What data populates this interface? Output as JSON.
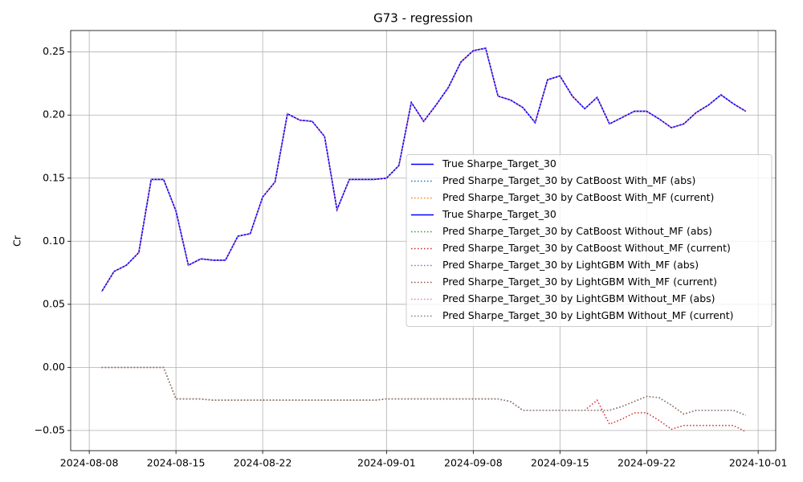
{
  "chart_data": {
    "type": "line",
    "title": "G73 - regression",
    "y_label": "Cr",
    "x": [
      "2024-08-09",
      "2024-08-10",
      "2024-08-11",
      "2024-08-12",
      "2024-08-13",
      "2024-08-14",
      "2024-08-15",
      "2024-08-16",
      "2024-08-17",
      "2024-08-18",
      "2024-08-19",
      "2024-08-20",
      "2024-08-21",
      "2024-08-22",
      "2024-08-23",
      "2024-08-24",
      "2024-08-25",
      "2024-08-26",
      "2024-08-27",
      "2024-08-28",
      "2024-08-29",
      "2024-08-30",
      "2024-08-31",
      "2024-09-01",
      "2024-09-02",
      "2024-09-03",
      "2024-09-04",
      "2024-09-05",
      "2024-09-06",
      "2024-09-07",
      "2024-09-08",
      "2024-09-09",
      "2024-09-10",
      "2024-09-11",
      "2024-09-12",
      "2024-09-13",
      "2024-09-14",
      "2024-09-15",
      "2024-09-16",
      "2024-09-17",
      "2024-09-18",
      "2024-09-19",
      "2024-09-20",
      "2024-09-21",
      "2024-09-22",
      "2024-09-23",
      "2024-09-24",
      "2024-09-25",
      "2024-09-26",
      "2024-09-27",
      "2024-09-28",
      "2024-09-29",
      "2024-09-30"
    ],
    "xlim": [
      "2024-08-06T12:00:00Z",
      "2024-10-02T10:00:00Z"
    ],
    "xticks": [
      "2024-08-08",
      "2024-08-15",
      "2024-08-22",
      "2024-09-01",
      "2024-09-08",
      "2024-09-15",
      "2024-09-22",
      "2024-10-01"
    ],
    "ylim": [
      -0.066,
      0.267
    ],
    "yticks": [
      {
        "value": -0.05,
        "label": "−0.05"
      },
      {
        "value": 0,
        "label": "0.00"
      },
      {
        "value": 0.05,
        "label": "0.05"
      },
      {
        "value": 0.1,
        "label": "0.10"
      },
      {
        "value": 0.15,
        "label": "0.15"
      },
      {
        "value": 0.2,
        "label": "0.20"
      },
      {
        "value": 0.25,
        "label": "0.25"
      }
    ],
    "grid": true,
    "legend_position": "center right",
    "series": [
      {
        "name": "True Sharpe_Target_30",
        "color": "#0000ff",
        "style": "solid",
        "values": [
          0.06,
          0.076,
          0.081,
          0.091,
          0.149,
          0.149,
          0.124,
          0.081,
          0.086,
          0.085,
          0.085,
          0.104,
          0.106,
          0.135,
          0.147,
          0.201,
          0.196,
          0.195,
          0.183,
          0.125,
          0.149,
          0.149,
          0.149,
          0.15,
          0.16,
          0.21,
          0.195,
          0.208,
          0.222,
          0.242,
          0.251,
          0.253,
          0.215,
          0.212,
          0.206,
          0.194,
          0.228,
          0.231,
          0.215,
          0.205,
          0.214,
          0.193,
          0.198,
          0.203,
          0.203,
          0.197,
          0.19,
          0.193,
          0.202,
          0.208,
          0.216,
          0.209,
          0.203
        ]
      },
      {
        "name": "Pred Sharpe_Target_30 by CatBoost With_MF (abs)",
        "color": "#1f77b4",
        "style": "dotted",
        "values": [
          0.06,
          0.076,
          0.081,
          0.091,
          0.149,
          0.149,
          0.124,
          0.081,
          0.086,
          0.085,
          0.085,
          0.104,
          0.106,
          0.135,
          0.147,
          0.201,
          0.196,
          0.195,
          0.183,
          0.125,
          0.149,
          0.149,
          0.149,
          0.15,
          0.16,
          0.21,
          0.195,
          0.208,
          0.222,
          0.242,
          0.251,
          0.253,
          0.215,
          0.212,
          0.206,
          0.194,
          0.228,
          0.231,
          0.215,
          0.205,
          0.214,
          0.193,
          0.198,
          0.203,
          0.203,
          0.197,
          0.19,
          0.193,
          0.202,
          0.208,
          0.216,
          0.209,
          0.203
        ]
      },
      {
        "name": "Pred Sharpe_Target_30 by CatBoost With_MF (current)",
        "color": "#ff7f0e",
        "style": "dotted",
        "values": [
          0,
          0,
          0,
          0,
          0,
          0,
          -0.025,
          -0.025,
          -0.025,
          -0.026,
          -0.026,
          -0.026,
          -0.026,
          -0.026,
          -0.026,
          -0.026,
          -0.026,
          -0.026,
          -0.026,
          -0.026,
          -0.026,
          -0.026,
          -0.026,
          -0.025,
          -0.025,
          -0.025,
          -0.025,
          -0.025,
          -0.025,
          -0.025,
          -0.025,
          -0.025,
          -0.025,
          -0.027,
          -0.034,
          -0.034,
          -0.034,
          -0.034,
          -0.034,
          -0.034,
          -0.034,
          -0.034,
          -0.031,
          -0.027,
          -0.023,
          -0.024,
          -0.03,
          -0.037,
          -0.034,
          -0.034,
          -0.034,
          -0.034,
          -0.038
        ]
      },
      {
        "name": "True Sharpe_Target_30",
        "color": "#0000ff",
        "style": "solid",
        "values": [
          0.06,
          0.076,
          0.081,
          0.091,
          0.149,
          0.149,
          0.124,
          0.081,
          0.086,
          0.085,
          0.085,
          0.104,
          0.106,
          0.135,
          0.147,
          0.201,
          0.196,
          0.195,
          0.183,
          0.125,
          0.149,
          0.149,
          0.149,
          0.15,
          0.16,
          0.21,
          0.195,
          0.208,
          0.222,
          0.242,
          0.251,
          0.253,
          0.215,
          0.212,
          0.206,
          0.194,
          0.228,
          0.231,
          0.215,
          0.205,
          0.214,
          0.193,
          0.198,
          0.203,
          0.203,
          0.197,
          0.19,
          0.193,
          0.202,
          0.208,
          0.216,
          0.209,
          0.203
        ]
      },
      {
        "name": "Pred Sharpe_Target_30 by CatBoost Without_MF (abs)",
        "color": "#2ca02c",
        "style": "dotted",
        "values": [
          0.06,
          0.076,
          0.081,
          0.091,
          0.149,
          0.149,
          0.124,
          0.081,
          0.086,
          0.085,
          0.085,
          0.104,
          0.106,
          0.135,
          0.147,
          0.201,
          0.196,
          0.195,
          0.183,
          0.125,
          0.149,
          0.149,
          0.149,
          0.15,
          0.16,
          0.21,
          0.195,
          0.208,
          0.222,
          0.242,
          0.251,
          0.253,
          0.215,
          0.212,
          0.206,
          0.194,
          0.228,
          0.231,
          0.215,
          0.205,
          0.214,
          0.193,
          0.198,
          0.203,
          0.203,
          0.197,
          0.19,
          0.193,
          0.202,
          0.208,
          0.216,
          0.209,
          0.203
        ]
      },
      {
        "name": "Pred Sharpe_Target_30 by CatBoost Without_MF (current)",
        "color": "#d62728",
        "style": "dotted",
        "values": [
          0,
          0,
          0,
          0,
          0,
          0,
          -0.025,
          -0.025,
          -0.025,
          -0.026,
          -0.026,
          -0.026,
          -0.026,
          -0.026,
          -0.026,
          -0.026,
          -0.026,
          -0.026,
          -0.026,
          -0.026,
          -0.026,
          -0.026,
          -0.026,
          -0.025,
          -0.025,
          -0.025,
          -0.025,
          -0.025,
          -0.025,
          -0.025,
          -0.025,
          -0.025,
          -0.025,
          -0.027,
          -0.034,
          -0.034,
          -0.034,
          -0.034,
          -0.034,
          -0.034,
          -0.026,
          -0.045,
          -0.041,
          -0.036,
          -0.036,
          -0.042,
          -0.049,
          -0.046,
          -0.046,
          -0.046,
          -0.046,
          -0.046,
          -0.051
        ]
      },
      {
        "name": "Pred Sharpe_Target_30 by LightGBM With_MF (abs)",
        "color": "#9467bd",
        "style": "dotted",
        "values": [
          0.06,
          0.076,
          0.081,
          0.091,
          0.149,
          0.149,
          0.124,
          0.081,
          0.086,
          0.085,
          0.085,
          0.104,
          0.106,
          0.135,
          0.147,
          0.201,
          0.196,
          0.195,
          0.183,
          0.125,
          0.149,
          0.149,
          0.149,
          0.15,
          0.16,
          0.21,
          0.195,
          0.208,
          0.222,
          0.242,
          0.251,
          0.253,
          0.215,
          0.212,
          0.206,
          0.194,
          0.228,
          0.231,
          0.215,
          0.205,
          0.214,
          0.193,
          0.198,
          0.203,
          0.203,
          0.197,
          0.19,
          0.193,
          0.202,
          0.208,
          0.216,
          0.209,
          0.203
        ]
      },
      {
        "name": "Pred Sharpe_Target_30 by LightGBM With_MF (current)",
        "color": "#8c564b",
        "style": "dotted",
        "values": [
          0,
          0,
          0,
          0,
          0,
          0,
          -0.025,
          -0.025,
          -0.025,
          -0.026,
          -0.026,
          -0.026,
          -0.026,
          -0.026,
          -0.026,
          -0.026,
          -0.026,
          -0.026,
          -0.026,
          -0.026,
          -0.026,
          -0.026,
          -0.026,
          -0.025,
          -0.025,
          -0.025,
          -0.025,
          -0.025,
          -0.025,
          -0.025,
          -0.025,
          -0.025,
          -0.025,
          -0.027,
          -0.034,
          -0.034,
          -0.034,
          -0.034,
          -0.034,
          -0.034,
          -0.034,
          -0.034,
          -0.031,
          -0.027,
          -0.023,
          -0.024,
          -0.03,
          -0.037,
          -0.034,
          -0.034,
          -0.034,
          -0.034,
          -0.038
        ]
      },
      {
        "name": "Pred Sharpe_Target_30 by LightGBM Without_MF (abs)",
        "color": "#e377c2",
        "style": "dotted",
        "values": [
          0.06,
          0.076,
          0.081,
          0.091,
          0.149,
          0.149,
          0.124,
          0.081,
          0.086,
          0.085,
          0.085,
          0.104,
          0.106,
          0.135,
          0.147,
          0.201,
          0.196,
          0.195,
          0.183,
          0.125,
          0.149,
          0.149,
          0.149,
          0.15,
          0.16,
          0.21,
          0.195,
          0.208,
          0.222,
          0.242,
          0.251,
          0.253,
          0.215,
          0.212,
          0.206,
          0.194,
          0.228,
          0.231,
          0.215,
          0.205,
          0.214,
          0.193,
          0.198,
          0.203,
          0.203,
          0.197,
          0.19,
          0.193,
          0.202,
          0.208,
          0.216,
          0.209,
          0.203
        ]
      },
      {
        "name": "Pred Sharpe_Target_30 by LightGBM Without_MF (current)",
        "color": "#7f7f7f",
        "style": "dotted",
        "values": [
          0,
          0,
          0,
          0,
          0,
          0,
          -0.025,
          -0.025,
          -0.025,
          -0.026,
          -0.026,
          -0.026,
          -0.026,
          -0.026,
          -0.026,
          -0.026,
          -0.026,
          -0.026,
          -0.026,
          -0.026,
          -0.026,
          -0.026,
          -0.026,
          -0.025,
          -0.025,
          -0.025,
          -0.025,
          -0.025,
          -0.025,
          -0.025,
          -0.025,
          -0.025,
          -0.025,
          -0.027,
          -0.034,
          -0.034,
          -0.034,
          -0.034,
          -0.034,
          -0.034,
          -0.034,
          -0.034,
          -0.031,
          -0.027,
          -0.023,
          -0.024,
          -0.03,
          -0.037,
          -0.034,
          -0.034,
          -0.034,
          -0.034,
          -0.038
        ]
      }
    ]
  }
}
